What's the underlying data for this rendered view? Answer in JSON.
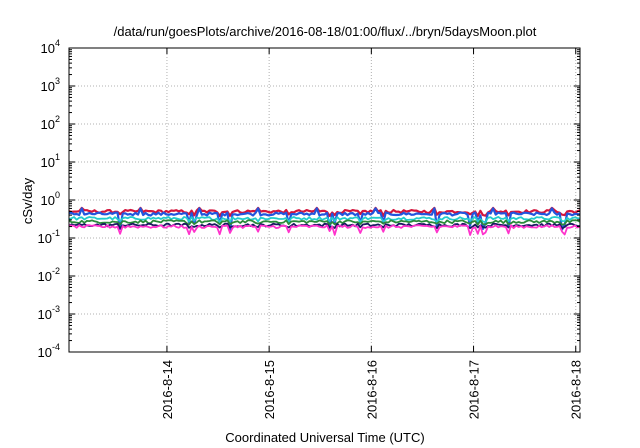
{
  "chart_data": {
    "type": "line",
    "title": "/data/run/goesPlots/archive/2016-08-18/01:00/flux/../bryn/5daysMoon.plot",
    "xlabel": "Coordinated Universal Time (UTC)",
    "ylabel": "cSv/day",
    "yscale": "log",
    "ylim": [
      0.0001,
      10000
    ],
    "y_ticks": [
      {
        "base": "10",
        "exp": "4"
      },
      {
        "base": "10",
        "exp": "3"
      },
      {
        "base": "10",
        "exp": "2"
      },
      {
        "base": "10",
        "exp": "1"
      },
      {
        "base": "10",
        "exp": "0"
      },
      {
        "base": "10",
        "exp": "-1"
      },
      {
        "base": "10",
        "exp": "-2"
      },
      {
        "base": "10",
        "exp": "-3"
      },
      {
        "base": "10",
        "exp": "-4"
      }
    ],
    "xlim": [
      "2016-08-13 01:00",
      "2016-08-18 01:00"
    ],
    "x_ticks": [
      "2016-8-14",
      "2016-8-15",
      "2016-8-16",
      "2016-8-17",
      "2016-8-18"
    ],
    "grid": true,
    "series": [
      {
        "color": "#d4143c",
        "approx_level": 0.5,
        "approx_range": [
          0.38,
          0.62
        ]
      },
      {
        "color": "#2255dd",
        "approx_level": 0.43,
        "approx_range": [
          0.16,
          0.6
        ]
      },
      {
        "color": "#22cccc",
        "approx_level": 0.33,
        "approx_range": [
          0.26,
          0.4
        ]
      },
      {
        "color": "#2a8a3a",
        "approx_level": 0.27,
        "approx_range": [
          0.22,
          0.31
        ]
      },
      {
        "color": "#1a1a60",
        "approx_level": 0.22,
        "approx_range": [
          0.18,
          0.26
        ]
      },
      {
        "color": "#ff33cc",
        "approx_level": 0.2,
        "approx_range": [
          0.12,
          0.25
        ]
      }
    ]
  }
}
